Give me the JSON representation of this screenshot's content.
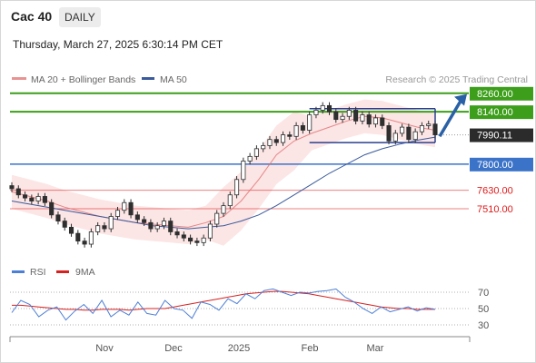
{
  "header": {
    "instrument": "Cac 40",
    "timeframe": "DAILY",
    "datetime": "Thursday, March 27, 2025 6:30:14 PM CET"
  },
  "colors": {
    "resistance": "#3c9e1a",
    "support": "#3b73c9",
    "level_minor": "#e01a1a",
    "bollinger": "#f7b5b5",
    "ma20": "#e06f6f",
    "ma50": "#3a5a9c",
    "candle": "#2f2f2f",
    "current": "#2b2b2b",
    "rsi": "#4d7fd6",
    "rsi_ma": "#d82020",
    "arrow": "#2a61a6"
  },
  "chart_data": [
    {
      "type": "line",
      "title": "Cac 40",
      "xlabel": "",
      "ylabel": "",
      "ylim": [
        7180,
        8300
      ],
      "x_ticks": [
        "Nov",
        "Dec",
        "2025",
        "Feb",
        "Mar"
      ],
      "legend": [
        "MA 20 + Bollinger Bands",
        "MA 50"
      ],
      "watermark": "Research © 2025 Trading Central",
      "levels": [
        {
          "value": 8260.0,
          "label": "8260.00",
          "kind": "resistance"
        },
        {
          "value": 8140.0,
          "label": "8140.00",
          "kind": "resistance"
        },
        {
          "value": 7990.11,
          "label": "7990.11",
          "kind": "current"
        },
        {
          "value": 7800.0,
          "label": "7800.00",
          "kind": "support"
        },
        {
          "value": 7630.0,
          "label": "7630.00",
          "kind": "minor"
        },
        {
          "value": 7510.0,
          "label": "7510.00",
          "kind": "minor"
        }
      ],
      "series": [
        {
          "name": "MA 50",
          "values": [
            7560,
            7540,
            7520,
            7500,
            7480,
            7460,
            7440,
            7420,
            7400,
            7390,
            7380,
            7390,
            7400,
            7430,
            7470,
            7530,
            7600,
            7670,
            7740,
            7800,
            7860,
            7900,
            7930,
            7955,
            7975
          ]
        },
        {
          "name": "MA 20",
          "values": [
            7620,
            7590,
            7560,
            7520,
            7490,
            7460,
            7440,
            7420,
            7410,
            7400,
            7390,
            7420,
            7460,
            7560,
            7700,
            7860,
            7950,
            8000,
            8040,
            8080,
            8110,
            8100,
            8070,
            8040,
            8020
          ]
        }
      ],
      "close": [
        7640,
        7600,
        7580,
        7560,
        7590,
        7550,
        7470,
        7430,
        7390,
        7350,
        7300,
        7280,
        7360,
        7400,
        7380,
        7460,
        7500,
        7550,
        7470,
        7440,
        7420,
        7380,
        7400,
        7430,
        7360,
        7340,
        7320,
        7300,
        7290,
        7320,
        7410,
        7480,
        7530,
        7600,
        7700,
        7820,
        7850,
        7900,
        7920,
        7960,
        7940,
        7990,
        7980,
        8050,
        8020,
        8120,
        8150,
        8180,
        8140,
        8090,
        8110,
        8150,
        8080,
        8120,
        8060,
        8100,
        8050,
        7950,
        8000,
        8040,
        7960,
        8010,
        8050,
        8060,
        7990
      ]
    },
    {
      "type": "line",
      "legend": [
        "RSI",
        "9MA"
      ],
      "ylim": [
        20,
        80
      ],
      "y_ticks": [
        70,
        50,
        30
      ],
      "series": [
        {
          "name": "RSI",
          "values": [
            45,
            60,
            55,
            40,
            48,
            52,
            36,
            47,
            55,
            44,
            60,
            40,
            48,
            42,
            58,
            44,
            42,
            60,
            50,
            48,
            38,
            58,
            55,
            48,
            62,
            56,
            68,
            62,
            72,
            74,
            70,
            66,
            70,
            69,
            71,
            72,
            74,
            64,
            58,
            50,
            44,
            52,
            46,
            49,
            52,
            47,
            51,
            49
          ]
        },
        {
          "name": "9MA",
          "values": [
            54,
            54,
            53,
            52,
            51,
            50,
            49,
            49,
            48,
            48,
            49,
            49,
            49,
            48,
            49,
            50,
            50,
            50,
            52,
            54,
            56,
            58,
            60,
            62,
            64,
            66,
            68,
            69,
            70,
            71,
            71,
            70,
            69,
            68,
            66,
            64,
            62,
            60,
            58,
            56,
            54,
            52,
            51,
            50,
            50,
            49,
            49,
            49
          ]
        }
      ]
    }
  ]
}
